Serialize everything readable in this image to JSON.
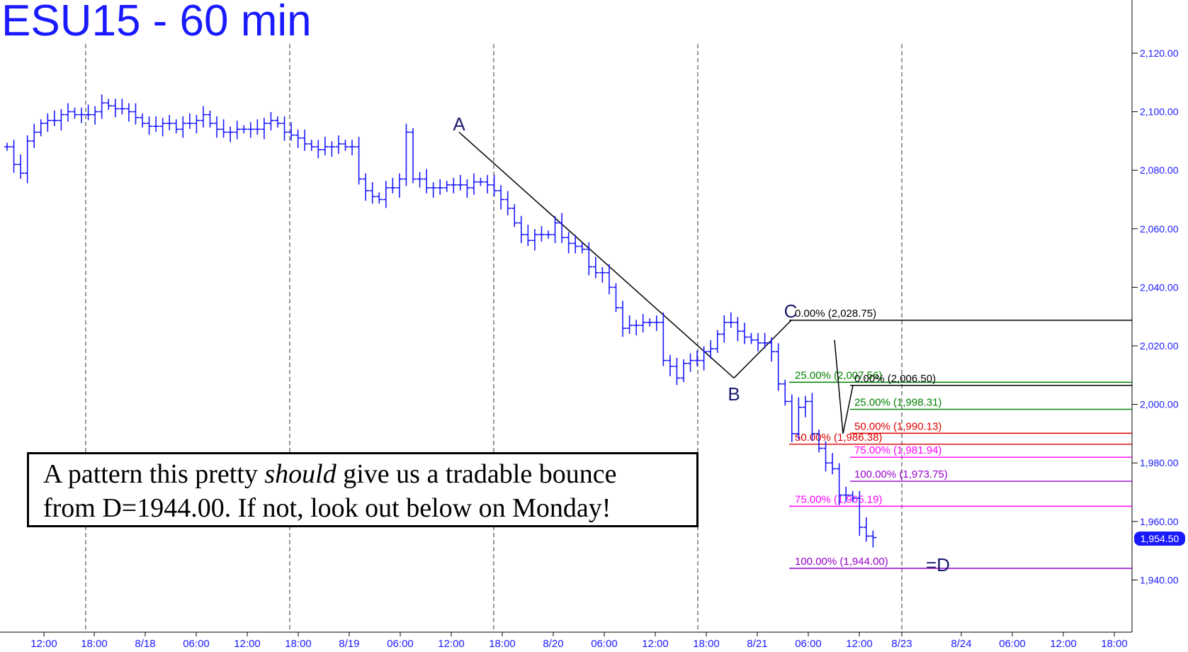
{
  "title": "ESU15 - 60 min",
  "annotation": {
    "line1_a": "A pattern this pretty ",
    "line1_em": "should",
    "line1_b": " give us a tradable bounce",
    "line2": "from D=1944.00.  If not, look out below on Monday!"
  },
  "last_price": "1,954.50",
  "colors": {
    "price": "#1a1aff",
    "axis_text": "#1a1aff",
    "fib_black": "#000000",
    "fib_green": "#008000",
    "fib_red": "#dd0000",
    "fib_magenta": "#ff00ff",
    "fib_purple": "#9900cc"
  },
  "chart_data": {
    "type": "line",
    "title": "ESU15 - 60 min",
    "y_ticks": [
      "2,120.00",
      "2,100.00",
      "2,080.00",
      "2,060.00",
      "2,040.00",
      "2,020.00",
      "2,000.00",
      "1,980.00",
      "1,960.00",
      "1,940.00"
    ],
    "y_tick_values": [
      2120,
      2100,
      2080,
      2060,
      2040,
      2020,
      2000,
      1980,
      1960,
      1940
    ],
    "ylim": [
      1923,
      2137
    ],
    "x_ticks": [
      "12:00",
      "18:00",
      "8/18",
      "06:00",
      "12:00",
      "18:00",
      "8/19",
      "06:00",
      "12:00",
      "18:00",
      "8/20",
      "06:00",
      "12:00",
      "18:00",
      "8/21",
      "06:00",
      "12:00",
      "8/23",
      "8/24",
      "06:00",
      "12:00",
      "18:00"
    ],
    "series": [
      {
        "values": [
          2088,
          2082,
          2079,
          2090,
          2093,
          2096,
          2097,
          2097,
          2099,
          2100,
          2099,
          2099,
          2099,
          2100,
          2103,
          2102,
          2101,
          2101,
          2100,
          2098,
          2096,
          2095,
          2095,
          2096,
          2096,
          2094,
          2096,
          2096,
          2097,
          2099,
          2096,
          2094,
          2093,
          2093,
          2094,
          2094,
          2094,
          2094,
          2096,
          2097,
          2096,
          2093,
          2092,
          2091,
          2089,
          2088,
          2087,
          2088,
          2088,
          2089,
          2088,
          2088,
          2077,
          2073,
          2071,
          2070,
          2074,
          2074,
          2077,
          2093,
          2077,
          2077,
          2074,
          2074,
          2074,
          2075,
          2075,
          2075,
          2074,
          2076,
          2076,
          2075,
          2073,
          2070,
          2067,
          2062,
          2058,
          2056,
          2058,
          2058,
          2058,
          2062,
          2057,
          2055,
          2054,
          2053,
          2047,
          2045,
          2045,
          2040,
          2033,
          2026,
          2027,
          2027,
          2028,
          2028,
          2028,
          2015,
          2013,
          2009,
          2014,
          2015,
          2015,
          2018,
          2019,
          2024,
          2028,
          2028,
          2025,
          2023,
          2022,
          2021,
          2021,
          2018,
          2007,
          2001,
          1990,
          1999,
          2001,
          1990,
          1985,
          1980,
          1978,
          1969,
          1969,
          1968,
          1958,
          1955,
          1954.5
        ]
      }
    ],
    "points": [
      {
        "label": "A",
        "value": 2093
      },
      {
        "label": "B",
        "value": 2009
      },
      {
        "label": "C",
        "value": 2028.75
      },
      {
        "label": "=D",
        "value": 1944
      }
    ],
    "fib_levels": [
      {
        "label": "0.00% (2,028.75)",
        "value": 2028.75,
        "color": "#000000"
      },
      {
        "label": "25.00% (2,007.56)",
        "value": 2007.56,
        "color": "#008000"
      },
      {
        "label": "0.00% (2,006.50)",
        "value": 2006.5,
        "color": "#000000"
      },
      {
        "label": "25.00% (1,998.31)",
        "value": 1998.31,
        "color": "#008000"
      },
      {
        "label": "50.00% (1,990.13)",
        "value": 1990.13,
        "color": "#dd0000"
      },
      {
        "label": "50.00% (1,986.38)",
        "value": 1986.38,
        "color": "#dd0000"
      },
      {
        "label": "75.00% (1,981.94)",
        "value": 1981.94,
        "color": "#ff00ff"
      },
      {
        "label": "100.00% (1,973.75)",
        "value": 1973.75,
        "color": "#9900cc"
      },
      {
        "label": "75.00% (1,965.19)",
        "value": 1965.19,
        "color": "#ff00ff"
      },
      {
        "label": "100.00% (1,944.00)",
        "value": 1944,
        "color": "#9900cc"
      }
    ],
    "grid": "vertical dashed at day separators",
    "legend": "none"
  }
}
